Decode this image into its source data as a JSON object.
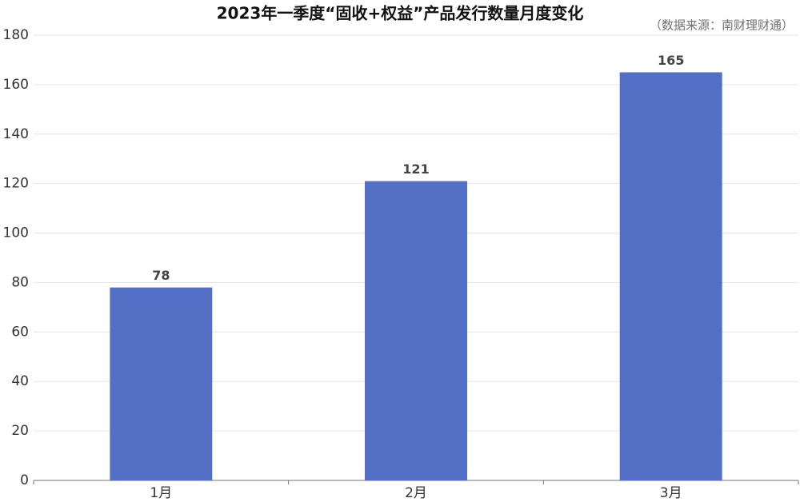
{
  "chart_data": {
    "type": "bar",
    "title": "2023年一季度“固收+权益”产品发行数量月度变化",
    "subtitle": "（数据来源：南财理财通）",
    "categories": [
      "1月",
      "2月",
      "3月"
    ],
    "values": [
      78,
      121,
      165
    ],
    "color": "#5470c6",
    "ylim": [
      0,
      180
    ],
    "yticks": [
      0,
      20,
      40,
      60,
      80,
      100,
      120,
      140,
      160,
      180
    ],
    "grid": true
  }
}
